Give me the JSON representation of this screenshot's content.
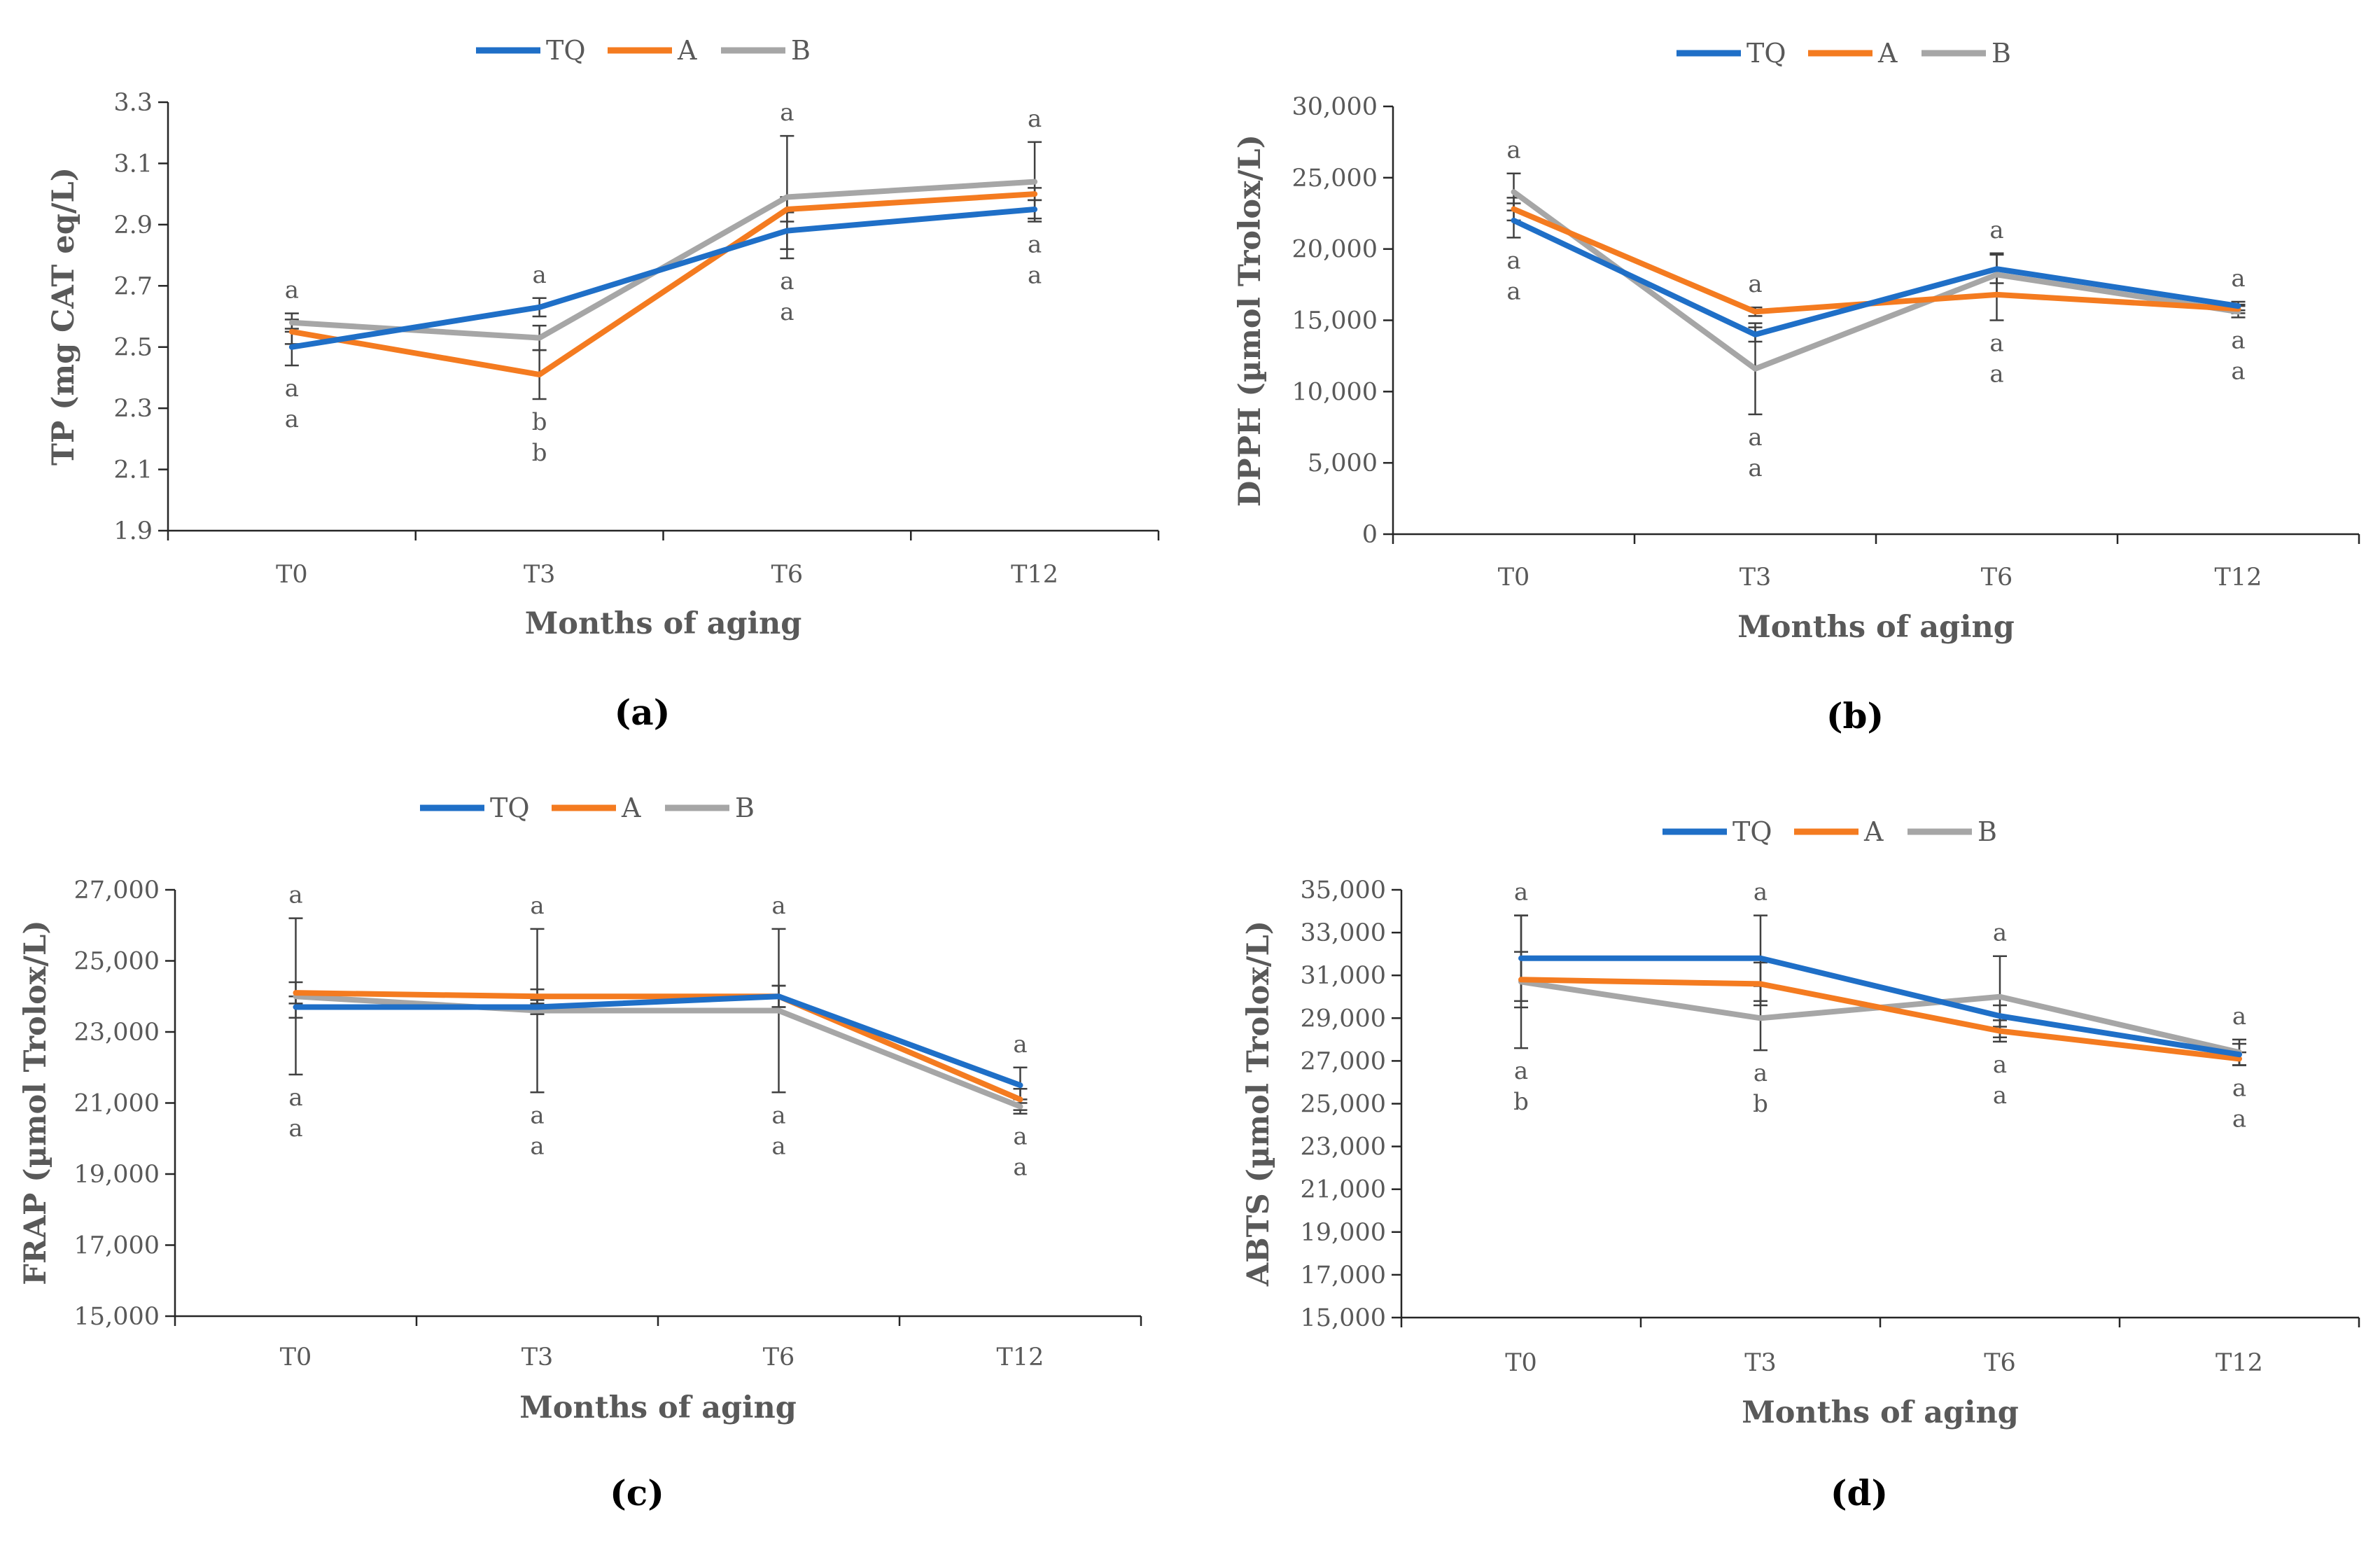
{
  "colors": {
    "TQ": "#1f6fc7",
    "A": "#f47b20",
    "B": "#a6a6a6",
    "axis": "#262626",
    "text": "#595959"
  },
  "chart_data": [
    {
      "type": "line",
      "panel_label": "(a)",
      "xlabel": "Months of aging",
      "ylabel": "TP (mg CAT eq/L)",
      "categories": [
        "T0",
        "T3",
        "T6",
        "T12"
      ],
      "ylim": [
        1.9,
        3.3
      ],
      "yticks": [
        1.9,
        2.1,
        2.3,
        2.5,
        2.7,
        2.9,
        3.1,
        3.3
      ],
      "ytick_labels": [
        "1.9",
        "2.1",
        "2.3",
        "2.5",
        "2.7",
        "2.9",
        "3.1",
        "3.3"
      ],
      "series": [
        {
          "name": "TQ",
          "color": "#1f6fc7",
          "values": [
            2.5,
            2.63,
            2.88,
            2.95
          ],
          "errors": [
            0.06,
            0.03,
            0.06,
            0.03
          ]
        },
        {
          "name": "A",
          "color": "#f47b20",
          "values": [
            2.55,
            2.41,
            2.95,
            3.0
          ],
          "errors": [
            0.04,
            0.08,
            0.04,
            0.02
          ]
        },
        {
          "name": "B",
          "color": "#a6a6a6",
          "values": [
            2.58,
            2.53,
            2.99,
            3.04
          ],
          "errors": [
            0.03,
            0.04,
            0.2,
            0.13
          ]
        }
      ],
      "letters": [
        {
          "above": [
            "a"
          ],
          "below": [
            "a",
            "a"
          ]
        },
        {
          "above": [
            "a"
          ],
          "below": [
            "b",
            "b"
          ]
        },
        {
          "above": [
            "a"
          ],
          "below": [
            "a",
            "a"
          ]
        },
        {
          "above": [
            "a"
          ],
          "below": [
            "a",
            "a"
          ]
        }
      ]
    },
    {
      "type": "line",
      "panel_label": "(b)",
      "xlabel": "Months of aging",
      "ylabel": "DPPH (µmol Trolox/L)",
      "categories": [
        "T0",
        "T3",
        "T6",
        "T12"
      ],
      "ylim": [
        0,
        30000
      ],
      "yticks": [
        0,
        5000,
        10000,
        15000,
        20000,
        25000,
        30000
      ],
      "ytick_labels": [
        "0",
        "5,000",
        "10,000",
        "15,000",
        "20,000",
        "25,000",
        "30,000"
      ],
      "series": [
        {
          "name": "TQ",
          "color": "#1f6fc7",
          "values": [
            22000,
            14000,
            18600,
            16000
          ],
          "errors": [
            1200,
            500,
            1000,
            300
          ]
        },
        {
          "name": "A",
          "color": "#f47b20",
          "values": [
            22800,
            15600,
            16800,
            15800
          ],
          "errors": [
            800,
            300,
            1800,
            300
          ]
        },
        {
          "name": "B",
          "color": "#a6a6a6",
          "values": [
            24000,
            11600,
            18200,
            15600
          ],
          "errors": [
            1300,
            3200,
            1500,
            400
          ]
        }
      ],
      "letters": [
        {
          "above": [
            "a"
          ],
          "below": [
            "a",
            "a"
          ]
        },
        {
          "above": [
            "a"
          ],
          "below": [
            "a",
            "a"
          ]
        },
        {
          "above": [
            "a"
          ],
          "below": [
            "a",
            "a"
          ]
        },
        {
          "above": [
            "a"
          ],
          "below": [
            "a",
            "a"
          ]
        }
      ]
    },
    {
      "type": "line",
      "panel_label": "(c)",
      "xlabel": "Months of aging",
      "ylabel": "FRAP (µmol Trolox/L)",
      "categories": [
        "T0",
        "T3",
        "T6",
        "T12"
      ],
      "ylim": [
        15000,
        27000
      ],
      "yticks": [
        15000,
        17000,
        19000,
        21000,
        23000,
        25000,
        27000
      ],
      "ytick_labels": [
        "15,000",
        "17,000",
        "19,000",
        "21,000",
        "23,000",
        "25,000",
        "27,000"
      ],
      "series": [
        {
          "name": "TQ",
          "color": "#1f6fc7",
          "values": [
            23700,
            23700,
            24000,
            21500
          ],
          "errors": [
            300,
            200,
            300,
            500
          ]
        },
        {
          "name": "A",
          "color": "#f47b20",
          "values": [
            24100,
            24000,
            24000,
            21100
          ],
          "errors": [
            300,
            200,
            300,
            300
          ]
        },
        {
          "name": "B",
          "color": "#a6a6a6",
          "values": [
            24000,
            23600,
            23600,
            20900
          ],
          "errors": [
            2200,
            2300,
            2300,
            200
          ]
        }
      ],
      "letters": [
        {
          "above": [
            "a"
          ],
          "below": [
            "a",
            "a"
          ]
        },
        {
          "above": [
            "a"
          ],
          "below": [
            "a",
            "a"
          ]
        },
        {
          "above": [
            "a"
          ],
          "below": [
            "a",
            "a"
          ]
        },
        {
          "above": [
            "a"
          ],
          "below": [
            "a",
            "a"
          ]
        }
      ]
    },
    {
      "type": "line",
      "panel_label": "(d)",
      "xlabel": "Months of aging",
      "ylabel": "ABTS (µmol Trolox/L)",
      "categories": [
        "T0",
        "T3",
        "T6",
        "T12"
      ],
      "ylim": [
        15000,
        35000
      ],
      "yticks": [
        15000,
        17000,
        19000,
        21000,
        23000,
        25000,
        27000,
        29000,
        31000,
        33000,
        35000
      ],
      "ytick_labels": [
        "15,000",
        "17,000",
        "19,000",
        "21,000",
        "23,000",
        "25,000",
        "27,000",
        "29,000",
        "31,000",
        "33,000",
        "35,000"
      ],
      "series": [
        {
          "name": "TQ",
          "color": "#1f6fc7",
          "values": [
            31800,
            31800,
            29100,
            27300
          ],
          "errors": [
            2000,
            2000,
            500,
            500
          ]
        },
        {
          "name": "A",
          "color": "#f47b20",
          "values": [
            30800,
            30600,
            28400,
            27100
          ],
          "errors": [
            1300,
            1000,
            500,
            300
          ]
        },
        {
          "name": "B",
          "color": "#a6a6a6",
          "values": [
            30700,
            29000,
            30000,
            27400
          ],
          "errors": [
            3100,
            1500,
            1900,
            600
          ]
        }
      ],
      "letters": [
        {
          "above": [
            "a"
          ],
          "below": [
            "a",
            "b"
          ]
        },
        {
          "above": [
            "a"
          ],
          "below": [
            "a",
            "b"
          ]
        },
        {
          "above": [
            "a"
          ],
          "below": [
            "a",
            "a"
          ]
        },
        {
          "above": [
            "a"
          ],
          "below": [
            "a",
            "a"
          ]
        }
      ]
    }
  ]
}
